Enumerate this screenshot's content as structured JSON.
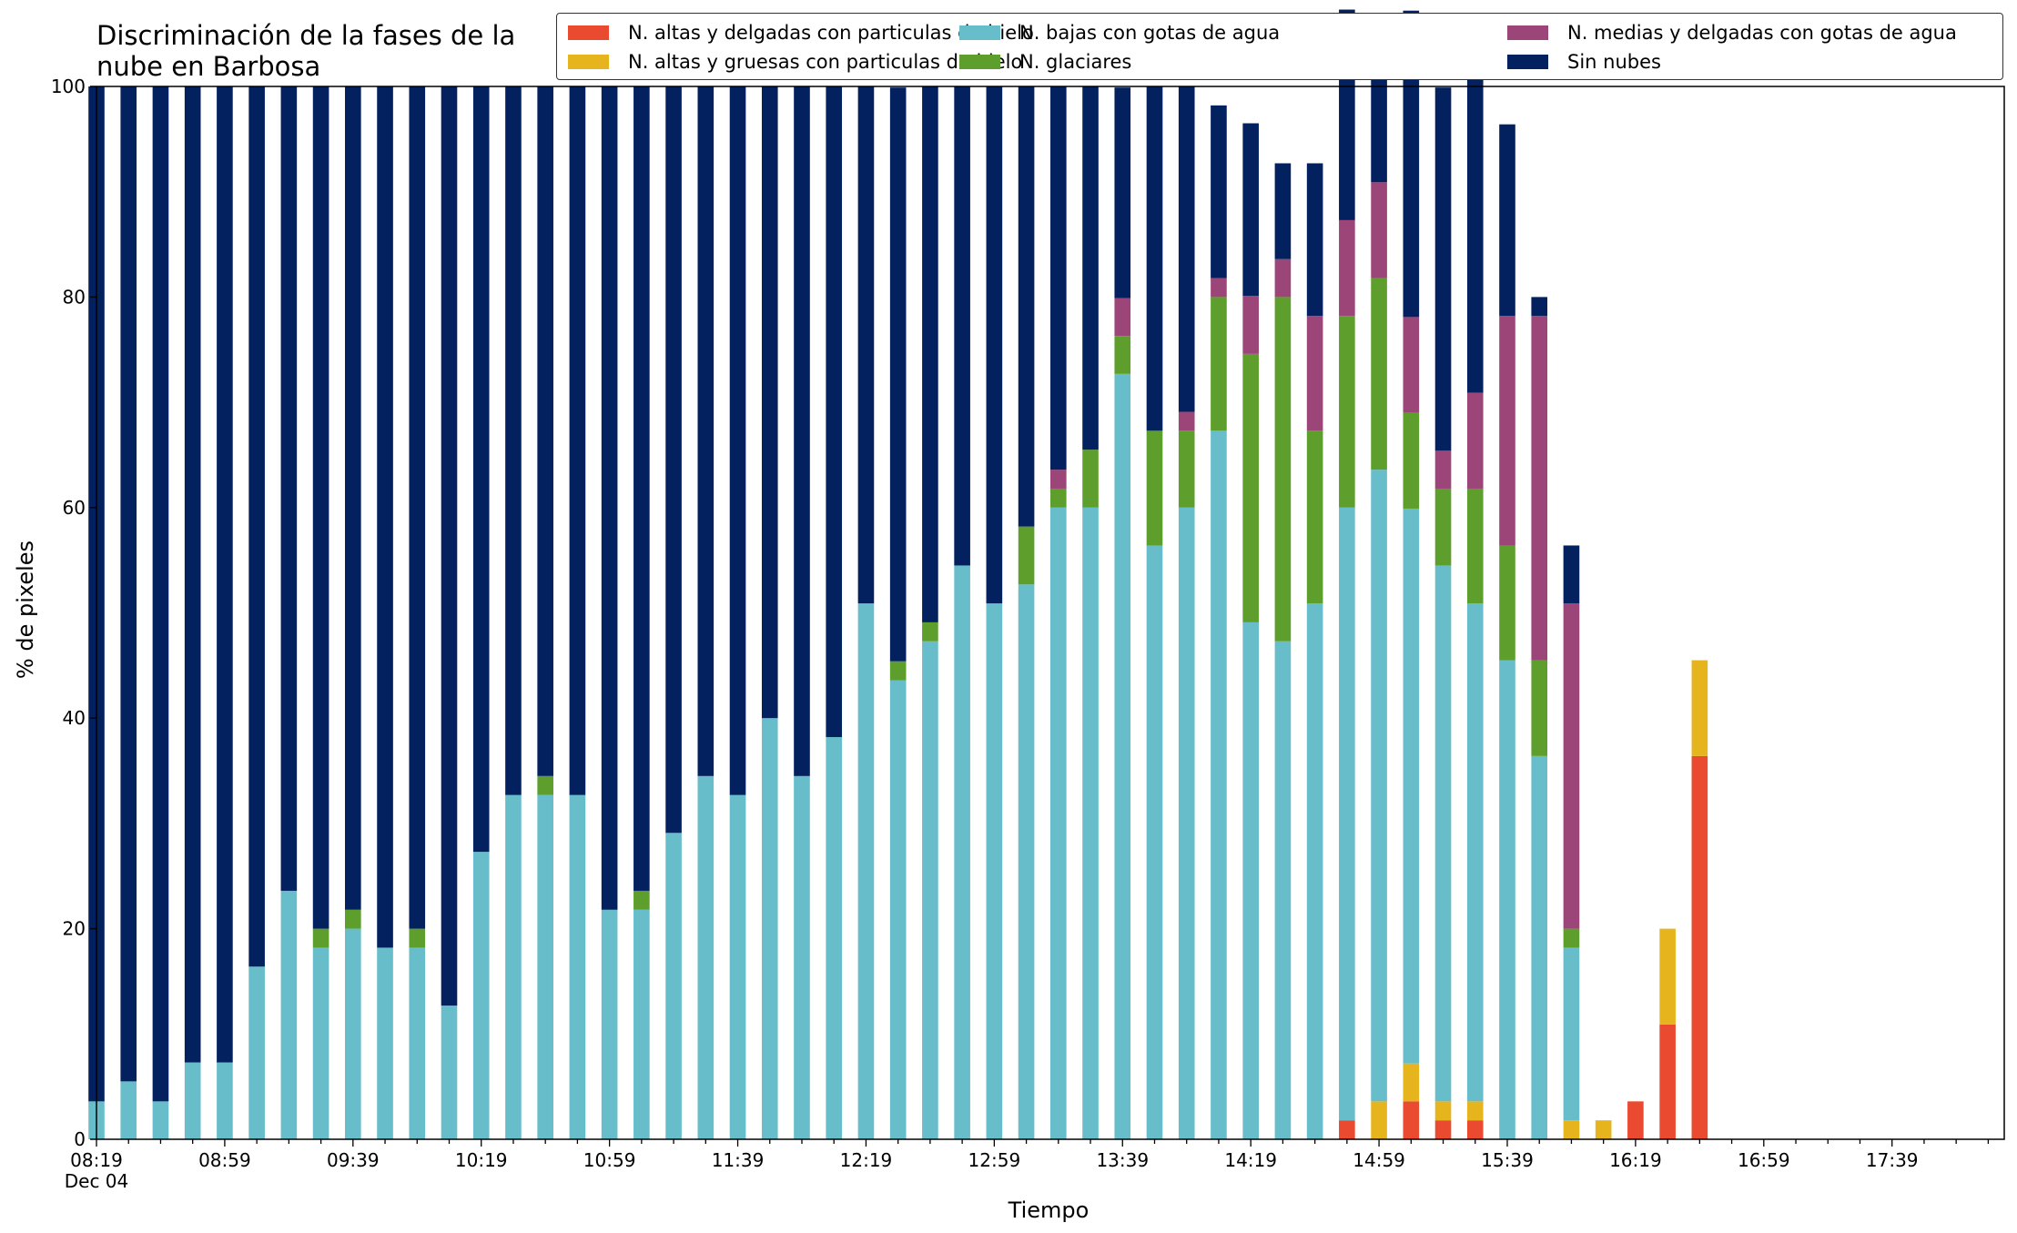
{
  "chart_data": {
    "type": "bar",
    "stacked": true,
    "title": "Discriminación de la fases de la\nnube en Barbosa",
    "xlabel": "Tiempo",
    "ylabel": "% de pixeles",
    "ylim": [
      0,
      100
    ],
    "yticks": [
      0,
      20,
      40,
      60,
      80,
      100
    ],
    "grid": false,
    "legend_position": "top-right",
    "legend_columns": 3,
    "x_tick_labels": [
      "08:19",
      "08:59",
      "09:39",
      "10:19",
      "10:59",
      "11:39",
      "12:19",
      "12:59",
      "13:39",
      "14:19",
      "14:59",
      "15:39",
      "16:19",
      "16:59",
      "17:39"
    ],
    "x_date_label": "Dec 04",
    "x_start": "08:19",
    "x_end": "18:14",
    "bar_interval_minutes": 10,
    "series": [
      {
        "name": "N. altas y delgadas con particulas de hielo",
        "color": "#ea4a2f",
        "values": [
          0,
          0,
          0,
          0,
          0,
          0,
          0,
          0,
          0,
          0,
          0,
          0,
          0,
          0,
          0,
          0,
          0,
          0,
          0,
          0,
          0,
          0,
          0,
          0,
          0,
          0,
          0,
          0,
          0,
          0,
          0,
          0,
          0,
          0,
          0,
          0,
          0,
          0,
          0,
          1.8,
          0,
          3.6,
          1.8,
          1.8,
          0,
          0,
          0,
          0,
          3.6,
          10.9,
          36.4
        ]
      },
      {
        "name": "N. altas y gruesas con particulas de hielo",
        "color": "#e6b51d",
        "values": [
          0,
          0,
          0,
          0,
          0,
          0,
          0,
          0,
          0,
          0,
          0,
          0,
          0,
          0,
          0,
          0,
          0,
          0,
          0,
          0,
          0,
          0,
          0,
          0,
          0,
          0,
          0,
          0,
          0,
          0,
          0,
          0,
          0,
          0,
          0,
          0,
          0,
          0,
          0,
          0,
          3.6,
          3.6,
          1.8,
          1.8,
          0,
          0,
          1.8,
          1.8,
          0,
          9.1,
          9.1
        ]
      },
      {
        "name": "N. bajas con gotas de agua",
        "color": "#67bdc9",
        "values": [
          3.6,
          5.5,
          3.6,
          7.3,
          7.3,
          16.4,
          23.6,
          18.2,
          20.0,
          18.2,
          18.2,
          12.7,
          27.3,
          32.7,
          32.7,
          32.7,
          21.8,
          21.8,
          29.1,
          34.5,
          32.7,
          40.0,
          34.5,
          38.2,
          50.9,
          43.6,
          47.3,
          54.5,
          50.9,
          52.7,
          60.0,
          60.0,
          72.7,
          56.4,
          60.0,
          67.3,
          49.1,
          47.3,
          50.9,
          58.2,
          60.0,
          52.7,
          50.9,
          47.3,
          45.5,
          36.4,
          16.4
        ]
      },
      {
        "name": "N. glaciares",
        "color": "#5e9e2d",
        "values": [
          0,
          0,
          0,
          0,
          0,
          0,
          0,
          1.8,
          1.8,
          0,
          1.8,
          0,
          0,
          0,
          1.8,
          0,
          0,
          1.8,
          0,
          0,
          0,
          0,
          0,
          0,
          0,
          1.8,
          1.8,
          0,
          0,
          5.5,
          1.8,
          5.5,
          3.6,
          10.9,
          7.3,
          12.7,
          25.5,
          32.7,
          16.4,
          18.2,
          18.2,
          9.1,
          7.3,
          10.9,
          10.9,
          9.1,
          1.8
        ]
      },
      {
        "name": "N. medias y delgadas con gotas de agua",
        "color": "#9b4579",
        "values": [
          0,
          0,
          0,
          0,
          0,
          0,
          0,
          0,
          0,
          0,
          0,
          0,
          0,
          0,
          0,
          0,
          0,
          0,
          0,
          0,
          0,
          0,
          0,
          0,
          0,
          0,
          0,
          0,
          0,
          0,
          1.8,
          0,
          3.6,
          0,
          1.8,
          1.8,
          5.5,
          3.6,
          10.9,
          9.1,
          9.1,
          9.1,
          3.6,
          9.1,
          21.8,
          32.7,
          30.9
        ]
      },
      {
        "name": "Sin nubes",
        "color": "#04215f",
        "values": [
          96.4,
          94.5,
          96.4,
          92.7,
          92.7,
          83.6,
          76.4,
          80.0,
          78.2,
          81.8,
          80.0,
          87.3,
          72.7,
          67.3,
          65.5,
          67.3,
          78.2,
          76.4,
          70.9,
          65.5,
          67.3,
          60.0,
          65.5,
          61.8,
          49.1,
          54.5,
          50.9,
          45.5,
          49.1,
          41.8,
          36.4,
          34.5,
          20.0,
          32.7,
          30.9,
          16.4,
          16.4,
          9.1,
          14.5,
          20.0,
          12.7,
          29.1,
          34.5,
          30.9,
          18.2,
          1.8,
          5.5
        ]
      }
    ]
  }
}
